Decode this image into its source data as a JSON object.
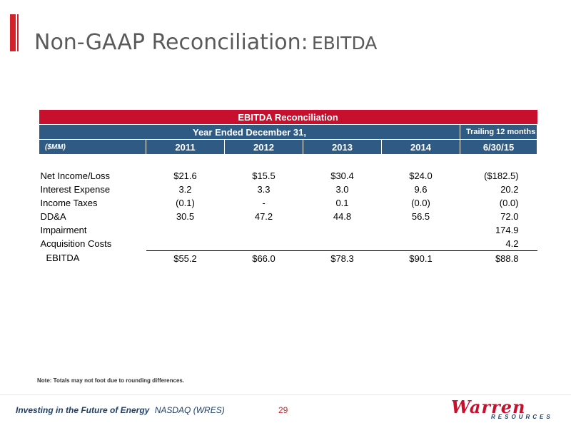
{
  "title": {
    "main": "Non-GAAP Reconciliation:",
    "sub": "EBITDA"
  },
  "table": {
    "heading": "EBITDA Reconciliation",
    "period_label": "Year Ended December 31,",
    "ttm_label": "Trailing 12 months",
    "units": "($MM)",
    "columns": [
      "2011",
      "2012",
      "2013",
      "2014",
      "6/30/15"
    ],
    "rows": [
      {
        "label": "Net Income/Loss",
        "values": [
          "$21.6",
          "$15.5",
          "$30.4",
          "$24.0",
          "($182.5)"
        ]
      },
      {
        "label": "Interest Expense",
        "values": [
          "3.2",
          "3.3",
          "3.0",
          "9.6",
          "20.2"
        ]
      },
      {
        "label": "Income Taxes",
        "values": [
          "(0.1)",
          "-",
          "0.1",
          "(0.0)",
          "(0.0)"
        ]
      },
      {
        "label": "DD&A",
        "values": [
          "30.5",
          "47.2",
          "44.8",
          "56.5",
          "72.0"
        ]
      },
      {
        "label": "Impairment",
        "values": [
          "",
          "",
          "",
          "",
          "174.9"
        ]
      },
      {
        "label": "Acquisition Costs",
        "values": [
          "",
          "",
          "",
          "",
          "4.2"
        ]
      }
    ],
    "total": {
      "label": "EBITDA",
      "values": [
        "$55.2",
        "$66.0",
        "$78.3",
        "$90.1",
        "$88.8"
      ]
    }
  },
  "note": "Note: Totals may not foot due to rounding differences.",
  "footer": {
    "tagline": "Investing in the Future of Energy",
    "ticker": "NASDAQ (WRES)",
    "page_number": "29"
  },
  "logo": {
    "name": "Warren",
    "subtitle": "RESOURCES"
  },
  "colors": {
    "accent_red": "#d2232a",
    "header_red": "#c8102e",
    "header_blue": "#2e5a83",
    "footer_blue": "#1f3f66"
  }
}
